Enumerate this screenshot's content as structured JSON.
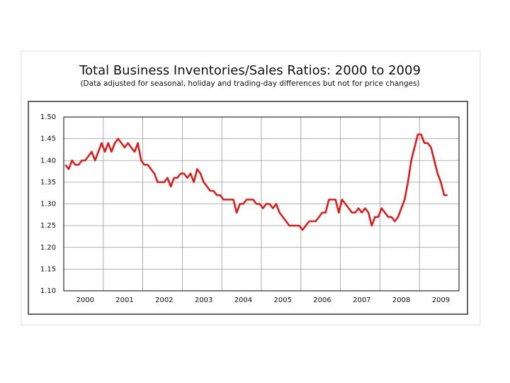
{
  "chart_data": {
    "type": "line",
    "title": "Total Business Inventories/Sales Ratios: 2000 to 2009",
    "subtitle": "(Data adjusted for seasonal, holiday and trading-day differences but not for price changes)",
    "categories": [
      null,
      null,
      null,
      null,
      null,
      null,
      "2000",
      null,
      null,
      null,
      null,
      null,
      null,
      null,
      null,
      null,
      null,
      null,
      "2001",
      null,
      null,
      null,
      null,
      null,
      null,
      null,
      null,
      null,
      null,
      null,
      "2002",
      null,
      null,
      null,
      null,
      null,
      null,
      null,
      null,
      null,
      null,
      null,
      "2003",
      null,
      null,
      null,
      null,
      null,
      null,
      null,
      null,
      null,
      null,
      null,
      "2004",
      null,
      null,
      null,
      null,
      null,
      null,
      null,
      null,
      null,
      null,
      null,
      "2005",
      null,
      null,
      null,
      null,
      null,
      null,
      null,
      null,
      null,
      null,
      null,
      "2006",
      null,
      null,
      null,
      null,
      null,
      null,
      null,
      null,
      null,
      null,
      null,
      "2007",
      null,
      null,
      null,
      null,
      null,
      null,
      null,
      null,
      null,
      null,
      null,
      "2008",
      null,
      null,
      null,
      null,
      null,
      null,
      null,
      null,
      null,
      null,
      null,
      "2009",
      null,
      null,
      null,
      null,
      null
    ],
    "series": [
      {
        "name": null,
        "color": "#d81e1e",
        "values": [
          1.39,
          1.38,
          1.4,
          1.39,
          1.39,
          1.4,
          1.4,
          1.41,
          1.42,
          1.4,
          1.42,
          1.44,
          1.42,
          1.44,
          1.42,
          1.44,
          1.45,
          1.44,
          1.43,
          1.44,
          1.43,
          1.42,
          1.44,
          1.4,
          1.39,
          1.39,
          1.38,
          1.37,
          1.35,
          1.35,
          1.35,
          1.36,
          1.34,
          1.36,
          1.36,
          1.37,
          1.37,
          1.36,
          1.37,
          1.35,
          1.38,
          1.37,
          1.35,
          1.34,
          1.33,
          1.33,
          1.32,
          1.32,
          1.31,
          1.31,
          1.31,
          1.31,
          1.28,
          1.3,
          1.3,
          1.31,
          1.31,
          1.31,
          1.3,
          1.3,
          1.29,
          1.3,
          1.3,
          1.29,
          1.3,
          1.28,
          1.27,
          1.26,
          1.25,
          1.25,
          1.25,
          1.25,
          1.24,
          1.25,
          1.26,
          1.26,
          1.26,
          1.27,
          1.28,
          1.28,
          1.31,
          1.31,
          1.31,
          1.28,
          1.31,
          1.3,
          1.29,
          1.28,
          1.28,
          1.29,
          1.28,
          1.29,
          1.28,
          1.25,
          1.27,
          1.27,
          1.29,
          1.28,
          1.27,
          1.27,
          1.26,
          1.27,
          1.29,
          1.31,
          1.35,
          1.4,
          1.43,
          1.46,
          1.46,
          1.44,
          1.44,
          1.43,
          1.4,
          1.37,
          1.35,
          1.32,
          1.32,
          null,
          null,
          null
        ]
      }
    ],
    "ylim": [
      1.1,
      1.5
    ],
    "yticks": [
      {
        "value": 1.5,
        "label": "1.50"
      },
      {
        "value": 1.45,
        "label": "1.45"
      },
      {
        "value": 1.4,
        "label": "1.40"
      },
      {
        "value": 1.35,
        "label": "1.35"
      },
      {
        "value": 1.3,
        "label": "1.30"
      },
      {
        "value": 1.25,
        "label": "1.25"
      },
      {
        "value": 1.2,
        "label": "1.20"
      },
      {
        "value": 1.15,
        "label": "1.15"
      },
      {
        "value": 1.1,
        "label": "1.10"
      }
    ],
    "grid": true
  }
}
